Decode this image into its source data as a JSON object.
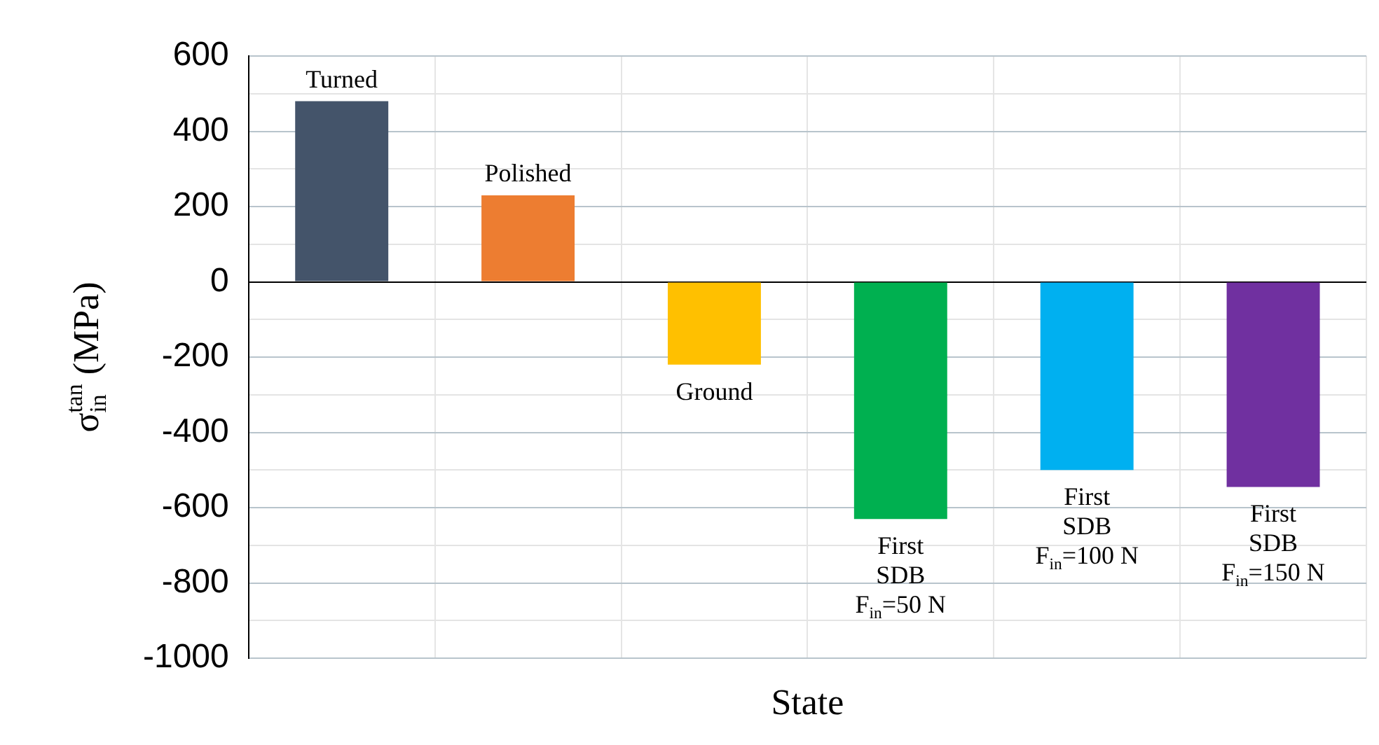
{
  "chart_data": {
    "type": "bar",
    "xlabel": "State",
    "ylabel": "σ$_{in}$$^{tan}$ (MPa)",
    "categories": [
      "Turned",
      "Polished",
      "Ground",
      "First\nSDB\nF$_{in}$=50 N",
      "First\nSDB\nF$_{in}$=100 N",
      "First\nSDB\nF$_{in}$=150 N"
    ],
    "values": [
      480,
      230,
      -220,
      -630,
      -500,
      -545
    ],
    "colors": [
      "#44546a",
      "#ed7d31",
      "#ffc000",
      "#00b050",
      "#00b0f0",
      "#7030a0"
    ],
    "ylim": [
      -1000,
      600
    ],
    "yticks": [
      -1000,
      {
        "value": -900,
        "label": null
      },
      -800,
      {
        "value": -700,
        "label": null
      },
      -600,
      {
        "value": -500,
        "label": null
      },
      -400,
      {
        "value": -300,
        "label": null
      },
      -200,
      {
        "value": -100,
        "label": null
      },
      0,
      {
        "value": 100,
        "label": null
      },
      200,
      {
        "value": 300,
        "label": null
      },
      400,
      {
        "value": 500,
        "label": null
      },
      600
    ],
    "grid": true,
    "legend": false,
    "tick_labels": "y"
  }
}
